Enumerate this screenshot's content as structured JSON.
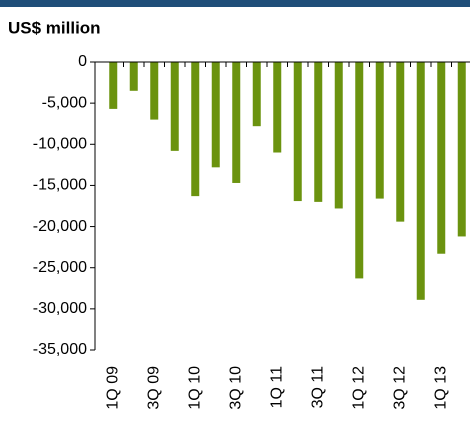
{
  "chart_data": {
    "type": "bar",
    "title": "US$ million",
    "categories": [
      "1Q 09",
      null,
      "3Q 09",
      null,
      "1Q 10",
      null,
      "3Q 10",
      null,
      "1Q 11",
      null,
      "3Q 11",
      null,
      "1Q 12",
      null,
      "3Q 12",
      null,
      "1Q 13",
      null
    ],
    "values": [
      -5700,
      -3500,
      -7000,
      -10800,
      -16300,
      -12800,
      -14700,
      -7800,
      -11000,
      -16900,
      -17000,
      -17800,
      -26300,
      -16600,
      -19400,
      -28900,
      -23300,
      -21200
    ],
    "color": "#6b930f",
    "ylim": [
      -35000,
      0
    ],
    "yticks": [
      {
        "value": -35000,
        "label": "-35,000"
      },
      {
        "value": -30000,
        "label": "-30,000"
      },
      {
        "value": -25000,
        "label": "-25,000"
      },
      {
        "value": -20000,
        "label": "-20,000"
      },
      {
        "value": -15000,
        "label": "-15,000"
      },
      {
        "value": -10000,
        "label": "-10,000"
      },
      {
        "value": -5000,
        "label": "-5,000"
      },
      0
    ]
  }
}
